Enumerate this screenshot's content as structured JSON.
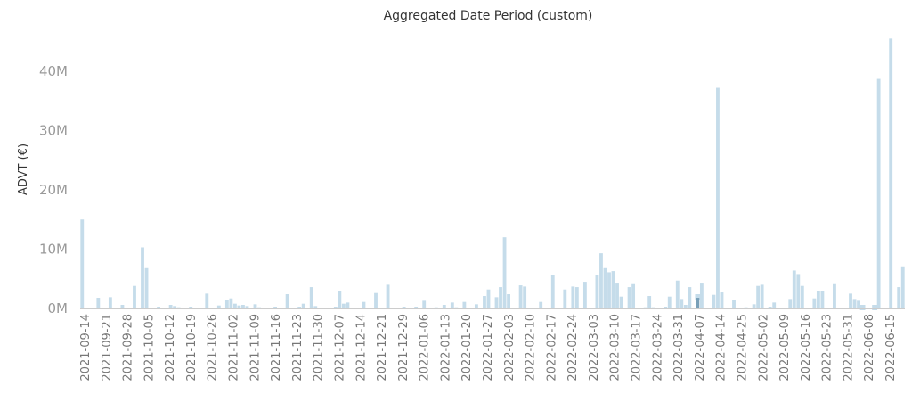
{
  "chart_data": {
    "type": "bar",
    "title": "Aggregated Date Period (custom)",
    "ylabel": "ADVT (€)",
    "xlabel": "",
    "ylim": [
      0,
      46000000
    ],
    "y_ticks": [
      {
        "value": 0,
        "label": "0M"
      },
      {
        "value": 10000000,
        "label": "10M"
      },
      {
        "value": 20000000,
        "label": "20M"
      },
      {
        "value": 30000000,
        "label": "30M"
      },
      {
        "value": 40000000,
        "label": "40M"
      }
    ],
    "x_tick_labels": [
      "2021-09-14",
      "2021-09-21",
      "2021-09-28",
      "2021-10-05",
      "2021-10-12",
      "2021-10-19",
      "2021-10-26",
      "2021-11-02",
      "2021-11-09",
      "2021-11-16",
      "2021-11-23",
      "2021-11-30",
      "2021-12-07",
      "2021-12-14",
      "2021-12-21",
      "2021-12-29",
      "2022-01-06",
      "2022-01-13",
      "2022-01-20",
      "2022-01-27",
      "2022-02-03",
      "2022-02-10",
      "2022-02-17",
      "2022-02-24",
      "2022-03-03",
      "2022-03-10",
      "2022-03-17",
      "2022-03-24",
      "2022-03-31",
      "2022-04-07",
      "2022-04-14",
      "2022-04-25",
      "2022-05-02",
      "2022-05-09",
      "2022-05-16",
      "2022-05-23",
      "2022-05-31",
      "2022-06-08",
      "2022-06-15"
    ],
    "colors": {
      "normal": "#c5dcea",
      "highlight": "#7aa0b8",
      "axis": "#cccccc"
    },
    "series": [
      {
        "values": [
          15000000,
          0,
          0,
          0,
          1800000,
          0,
          0,
          1900000,
          0,
          0,
          600000,
          0,
          0,
          3800000,
          0,
          10300000,
          6800000,
          0,
          0,
          300000,
          0,
          0,
          600000,
          400000,
          200000,
          0,
          0,
          300000,
          0,
          0,
          0,
          2500000,
          0,
          0,
          500000,
          0,
          1500000,
          1700000,
          800000,
          500000,
          600000,
          400000,
          0,
          700000,
          200000,
          0,
          0,
          0,
          300000,
          0,
          0,
          2400000,
          0,
          0,
          300000,
          800000,
          0,
          3600000,
          400000,
          0,
          0,
          0,
          0,
          300000,
          2900000,
          800000,
          1000000,
          0,
          0,
          0,
          1100000,
          0,
          0,
          2600000,
          0,
          0,
          4000000,
          0,
          0,
          0,
          300000,
          0,
          0,
          300000,
          0,
          1300000,
          0,
          0,
          200000,
          0,
          600000,
          0,
          1000000,
          200000,
          0,
          1100000,
          0,
          0,
          700000,
          0,
          2100000,
          3200000,
          0,
          1900000,
          3600000,
          12000000,
          2400000,
          0,
          0,
          3900000,
          3700000,
          0,
          0,
          0,
          1100000,
          0,
          0,
          5700000,
          0,
          0,
          3200000,
          0,
          3700000,
          3600000,
          0,
          4500000,
          0,
          0,
          5600000,
          9300000,
          6800000,
          6100000,
          6300000,
          4200000,
          2000000,
          0,
          3600000,
          4100000,
          0,
          0,
          200000,
          2100000,
          200000,
          0,
          0,
          300000,
          2000000,
          0,
          4700000,
          1600000,
          600000,
          3600000,
          0,
          1800000,
          4200000,
          0,
          0,
          2300000,
          37200000,
          2700000,
          0,
          0,
          1500000,
          0,
          0,
          200000,
          0,
          700000,
          3800000,
          4000000,
          0,
          300000,
          1000000,
          0,
          0,
          0,
          1600000,
          6400000,
          5800000,
          3800000,
          0,
          0,
          1700000,
          2900000,
          2900000,
          0,
          0,
          4100000,
          0,
          0,
          0,
          2500000,
          1600000,
          1300000,
          0,
          0,
          0,
          0,
          38700000,
          0,
          0,
          45500000,
          0,
          3600000,
          7100000
        ]
      }
    ],
    "highlight_indices": [
      153,
      194,
      197
    ]
  }
}
